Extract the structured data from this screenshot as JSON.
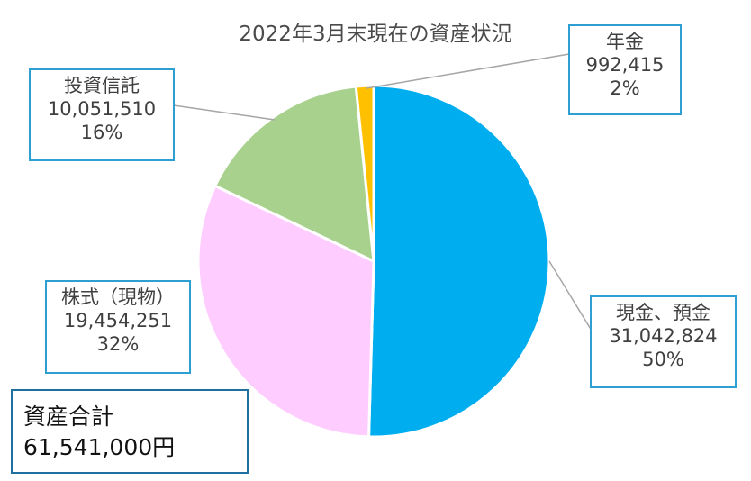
{
  "title": "2022年3月末現在の資産状況",
  "chart_data": {
    "type": "pie",
    "title": "2022年3月末現在の資産状況",
    "slices": [
      {
        "label": "現金、預金",
        "value": 31042824,
        "percent": "50%",
        "color": "#00aeef"
      },
      {
        "label": "株式（現物）",
        "value": 19454251,
        "percent": "32%",
        "color": "#ffccff"
      },
      {
        "label": "投資信託",
        "value": 10051510,
        "percent": "16%",
        "color": "#a9d18e"
      },
      {
        "label": "年金",
        "value": 992415,
        "percent": "2%",
        "color": "#ffc000"
      }
    ]
  },
  "labels": {
    "cash": {
      "name": "現金、預金",
      "value": "31,042,824",
      "percent": "50%"
    },
    "stocks": {
      "name": "株式（現物）",
      "value": "19,454,251",
      "percent": "32%"
    },
    "funds": {
      "name": "投資信託",
      "value": "10,051,510",
      "percent": "16%"
    },
    "pension": {
      "name": "年金",
      "value": "992,415",
      "percent": "2%"
    }
  },
  "total": {
    "label": "資産合計",
    "value": "61,541,000円"
  }
}
